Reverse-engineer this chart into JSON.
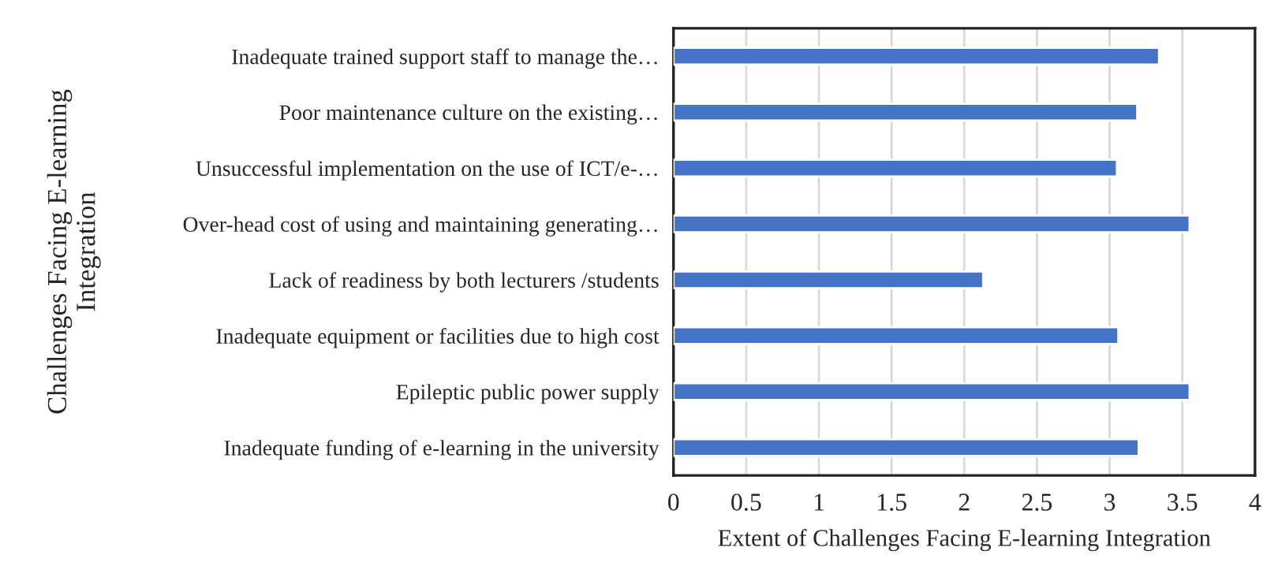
{
  "chart_data": {
    "type": "bar",
    "orientation": "horizontal",
    "categories": [
      "Inadequate trained support staff to manage the…",
      "Poor maintenance culture on the existing…",
      "Unsuccessful implementation on the use of ICT/e-…",
      "Over-head cost of using and maintaining generating…",
      "Lack of readiness by both lecturers /students",
      "Inadequate equipment or facilities due to high cost",
      "Epileptic public power supply",
      "Inadequate funding of e-learning in the university"
    ],
    "values": [
      3.34,
      3.19,
      3.05,
      3.55,
      2.13,
      3.06,
      3.55,
      3.2
    ],
    "color": "#4472c4",
    "xlim": [
      0,
      4
    ],
    "xticks": [
      0,
      0.5,
      1,
      1.5,
      2,
      2.5,
      3,
      3.5,
      4
    ],
    "xlabel": "Extent of Challenges Facing E-learning Integration",
    "ylabel": "Challenges Facing E-learning\nIntegration",
    "grid": "x",
    "legend": false
  }
}
